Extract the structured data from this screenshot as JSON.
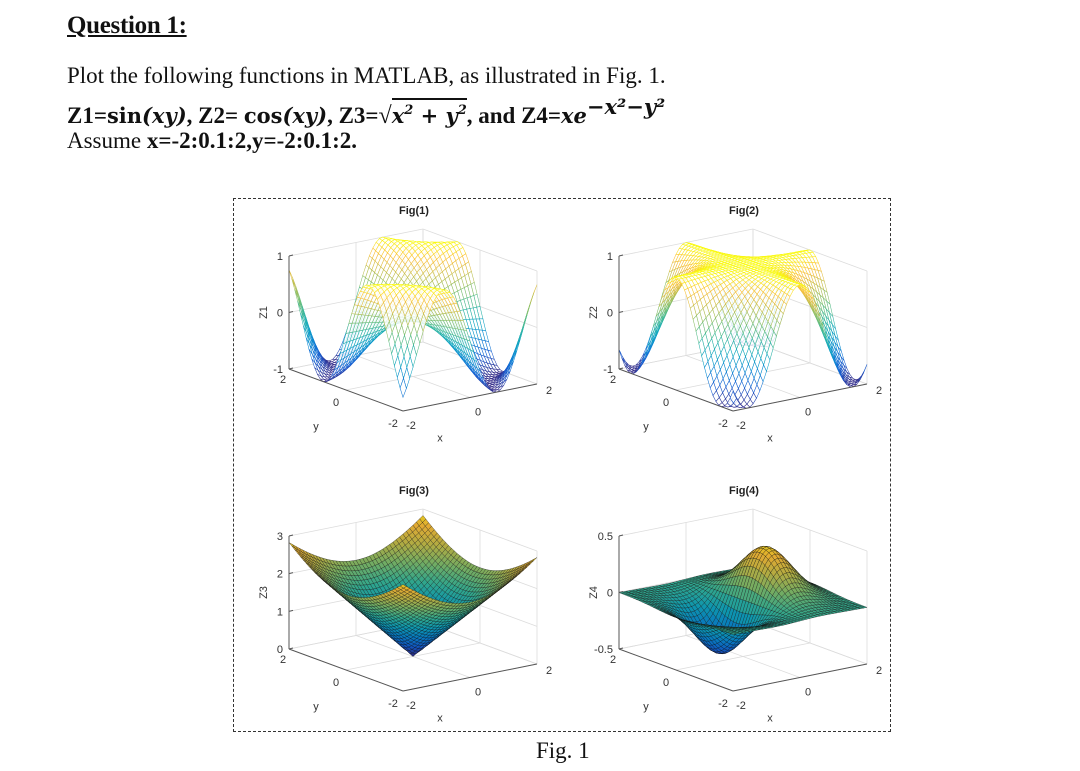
{
  "question": {
    "title": "Question 1:",
    "line1": "Plot the following functions in MATLAB, as illustrated in Fig. 1.",
    "line2": {
      "z1_label": "Z1=",
      "z1_fn": "sin",
      "z1_arg": "(xy)",
      "sep1": ", Z2= ",
      "z2_fn": "cos",
      "z2_arg": "(xy)",
      "sep2": ", Z3=",
      "z3_radical": "√",
      "z3_radicand_x": "x",
      "z3_exp": "2",
      "z3_plus": " + ",
      "z3_radicand_y": "y",
      "sep3": ", and Z4=",
      "z4_base": "xe",
      "z4_exponent": "−x²−y²"
    },
    "line3": {
      "prefix": "Assume ",
      "range": "x=-2:0.1:2,y=-2:0.1:2."
    }
  },
  "figure": {
    "caption": "Fig. 1",
    "border_color": "#333333"
  },
  "chart_data": [
    {
      "type": "surface-mesh",
      "title": "Fig(1)",
      "function": "sin(x*y)",
      "xlabel": "x",
      "ylabel": "y",
      "zlabel": "Z1",
      "x_range": [
        -2,
        2
      ],
      "y_range": [
        -2,
        2
      ],
      "step": 0.1,
      "zlim": [
        -1,
        1
      ],
      "x_ticks": [
        "-2",
        "0",
        "2"
      ],
      "y_ticks": [
        "2",
        "0",
        "-2"
      ],
      "z_ticks": [
        "1",
        "0",
        "-1"
      ],
      "z_tick_values": [
        1,
        0,
        -1
      ],
      "colormap": "parula",
      "style": "mesh"
    },
    {
      "type": "surface-mesh",
      "title": "Fig(2)",
      "function": "cos(x*y)",
      "xlabel": "x",
      "ylabel": "y",
      "zlabel": "Z2",
      "x_range": [
        -2,
        2
      ],
      "y_range": [
        -2,
        2
      ],
      "step": 0.1,
      "zlim": [
        -1,
        1
      ],
      "x_ticks": [
        "-2",
        "0",
        "2"
      ],
      "y_ticks": [
        "2",
        "0",
        "-2"
      ],
      "z_ticks": [
        "1",
        "0",
        "-1"
      ],
      "z_tick_values": [
        1,
        0,
        -1
      ],
      "colormap": "parula",
      "style": "mesh"
    },
    {
      "type": "surface",
      "title": "Fig(3)",
      "function": "sqrt(x^2+y^2)",
      "xlabel": "x",
      "ylabel": "y",
      "zlabel": "Z3",
      "x_range": [
        -2,
        2
      ],
      "y_range": [
        -2,
        2
      ],
      "step": 0.1,
      "zlim": [
        0,
        3
      ],
      "x_ticks": [
        "-2",
        "0",
        "2"
      ],
      "y_ticks": [
        "2",
        "0",
        "-2"
      ],
      "z_ticks": [
        "3",
        "2",
        "1",
        "0"
      ],
      "z_tick_values": [
        3,
        2,
        1,
        0
      ],
      "colormap": "parula",
      "style": "surf"
    },
    {
      "type": "surface",
      "title": "Fig(4)",
      "function": "x*exp(-x^2-y^2)",
      "xlabel": "x",
      "ylabel": "y",
      "zlabel": "Z4",
      "x_range": [
        -2,
        2
      ],
      "y_range": [
        -2,
        2
      ],
      "step": 0.1,
      "zlim": [
        -0.5,
        0.5
      ],
      "x_ticks": [
        "-2",
        "0",
        "2"
      ],
      "y_ticks": [
        "2",
        "0",
        "-2"
      ],
      "z_ticks": [
        "0.5",
        "0",
        "-0.5"
      ],
      "z_tick_values": [
        0.5,
        0,
        -0.5
      ],
      "colormap": "parula",
      "style": "surf"
    }
  ]
}
